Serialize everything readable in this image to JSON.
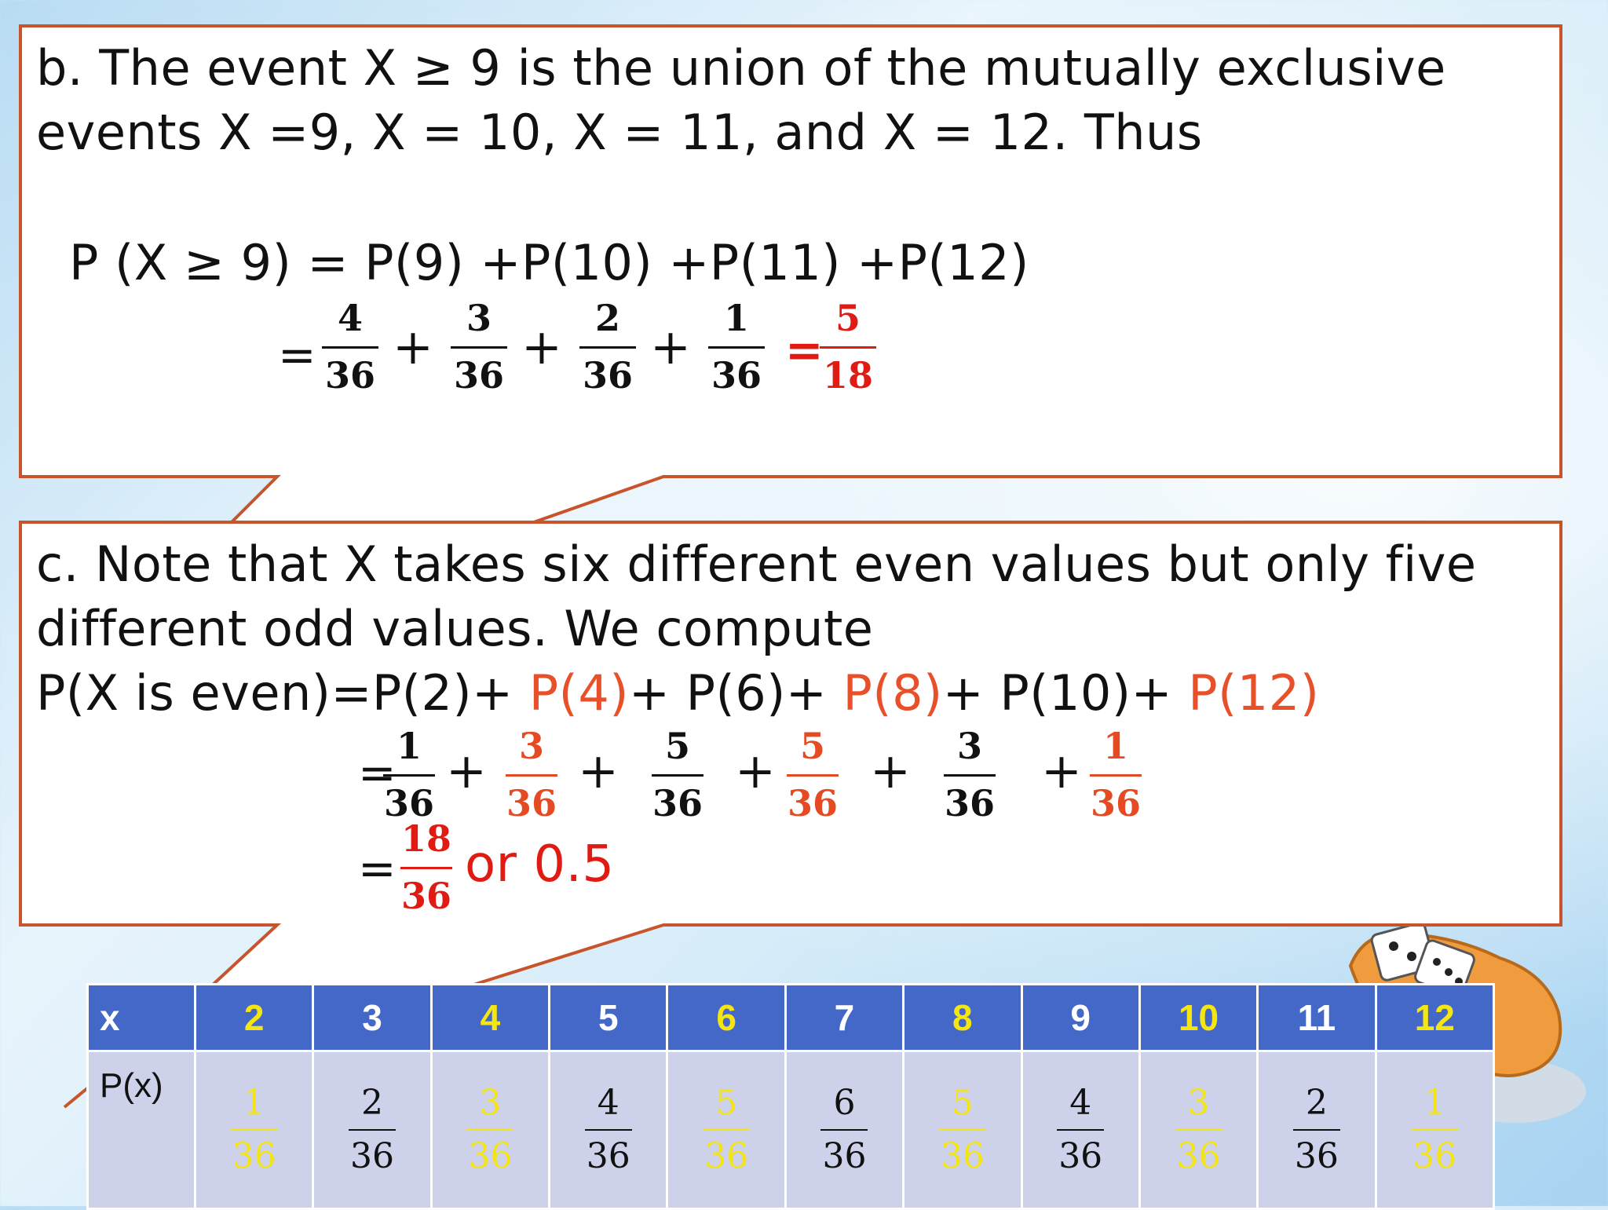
{
  "part_b": {
    "line1": "b. The event X ≥ 9 is the union of the mutually exclusive",
    "line2": "events X =9, X = 10, X = 11, and X = 12. Thus",
    "formula": "P (X ≥ 9) = P(9) +P(10) +P(11) +P(12)",
    "equals": "=",
    "plus": "+",
    "fractions": [
      {
        "num": "4",
        "den": "36"
      },
      {
        "num": "3",
        "den": "36"
      },
      {
        "num": "2",
        "den": "36"
      },
      {
        "num": "1",
        "den": "36"
      }
    ],
    "result_equals": "=",
    "result": {
      "num": "5",
      "den": "18"
    }
  },
  "part_c": {
    "line1": "c. Note that X takes six different even values but only five",
    "line2": "different odd values. We compute",
    "formula_prefix": "P(X is even)=P(2)+ ",
    "formula_terms": [
      "P(4)",
      "+ P(6)+ ",
      "P(8)",
      "+ P(10)+ ",
      "P(12)"
    ],
    "equals": "=",
    "plus": "+",
    "fractions": [
      {
        "num": "1",
        "den": "36"
      },
      {
        "num": "3",
        "den": "36"
      },
      {
        "num": "5",
        "den": "36"
      },
      {
        "num": "5",
        "den": "36"
      },
      {
        "num": "3",
        "den": "36"
      },
      {
        "num": "1",
        "den": "36"
      }
    ],
    "sum_equals": "=",
    "sum": {
      "num": "18",
      "den": "36"
    },
    "sum_text": "or 0.5"
  },
  "table": {
    "x_label": "x",
    "p_label": "P(x)",
    "columns": [
      {
        "x": "2",
        "num": "1",
        "den": "36"
      },
      {
        "x": "3",
        "num": "2",
        "den": "36"
      },
      {
        "x": "4",
        "num": "3",
        "den": "36"
      },
      {
        "x": "5",
        "num": "4",
        "den": "36"
      },
      {
        "x": "6",
        "num": "5",
        "den": "36"
      },
      {
        "x": "7",
        "num": "6",
        "den": "36"
      },
      {
        "x": "8",
        "num": "5",
        "den": "36"
      },
      {
        "x": "9",
        "num": "4",
        "den": "36"
      },
      {
        "x": "10",
        "num": "3",
        "den": "36"
      },
      {
        "x": "11",
        "num": "2",
        "den": "36"
      },
      {
        "x": "12",
        "num": "1",
        "den": "36"
      }
    ]
  },
  "colors": {
    "callout_border": "#c8542c",
    "header_blue": "#4468c8",
    "highlight_yellow": "#f5e612",
    "result_red": "#e01b14",
    "term_orange": "#e8502a",
    "body_lavender": "#cdd2ea"
  },
  "illustration": "hand-with-dice-icon"
}
